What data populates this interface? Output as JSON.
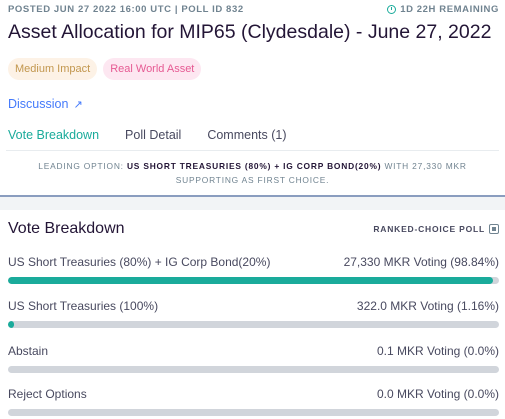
{
  "header": {
    "posted": "POSTED JUN 27 2022 16:00 UTC | POLL ID 832",
    "remaining": "1D 22H REMAINING",
    "title": "Asset Allocation for MIP65 (Clydesdale) - June 27, 2022"
  },
  "tags": [
    {
      "label": "Medium Impact"
    },
    {
      "label": "Real World Asset"
    }
  ],
  "discussion_label": "Discussion",
  "tabs": [
    {
      "label": "Vote Breakdown",
      "active": true
    },
    {
      "label": "Poll Detail",
      "active": false
    },
    {
      "label": "Comments (1)",
      "active": false
    }
  ],
  "leading": {
    "prefix": "LEADING OPTION:",
    "option": "US SHORT TREASURIES (80%) + IG CORP BOND(20%)",
    "suffix": "WITH 27,330 MKR SUPPORTING AS FIRST CHOICE."
  },
  "breakdown": {
    "title": "Vote Breakdown",
    "poll_type": "RANKED-CHOICE POLL",
    "options": [
      {
        "name": "US Short Treasuries (80%) + IG Corp Bond(20%)",
        "votes": "27,330 MKR Voting (98.84%)",
        "percent": 98.84
      },
      {
        "name": "US Short Treasuries (100%)",
        "votes": "322.0 MKR Voting (1.16%)",
        "percent": 1.16
      },
      {
        "name": "Abstain",
        "votes": "0.1 MKR Voting (0.0%)",
        "percent": 0
      },
      {
        "name": "Reject Options",
        "votes": "0.0 MKR Voting (0.0%)",
        "percent": 0
      }
    ]
  },
  "colors": {
    "accent": "#1aab9b",
    "link": "#447afb",
    "text": "#231536"
  }
}
